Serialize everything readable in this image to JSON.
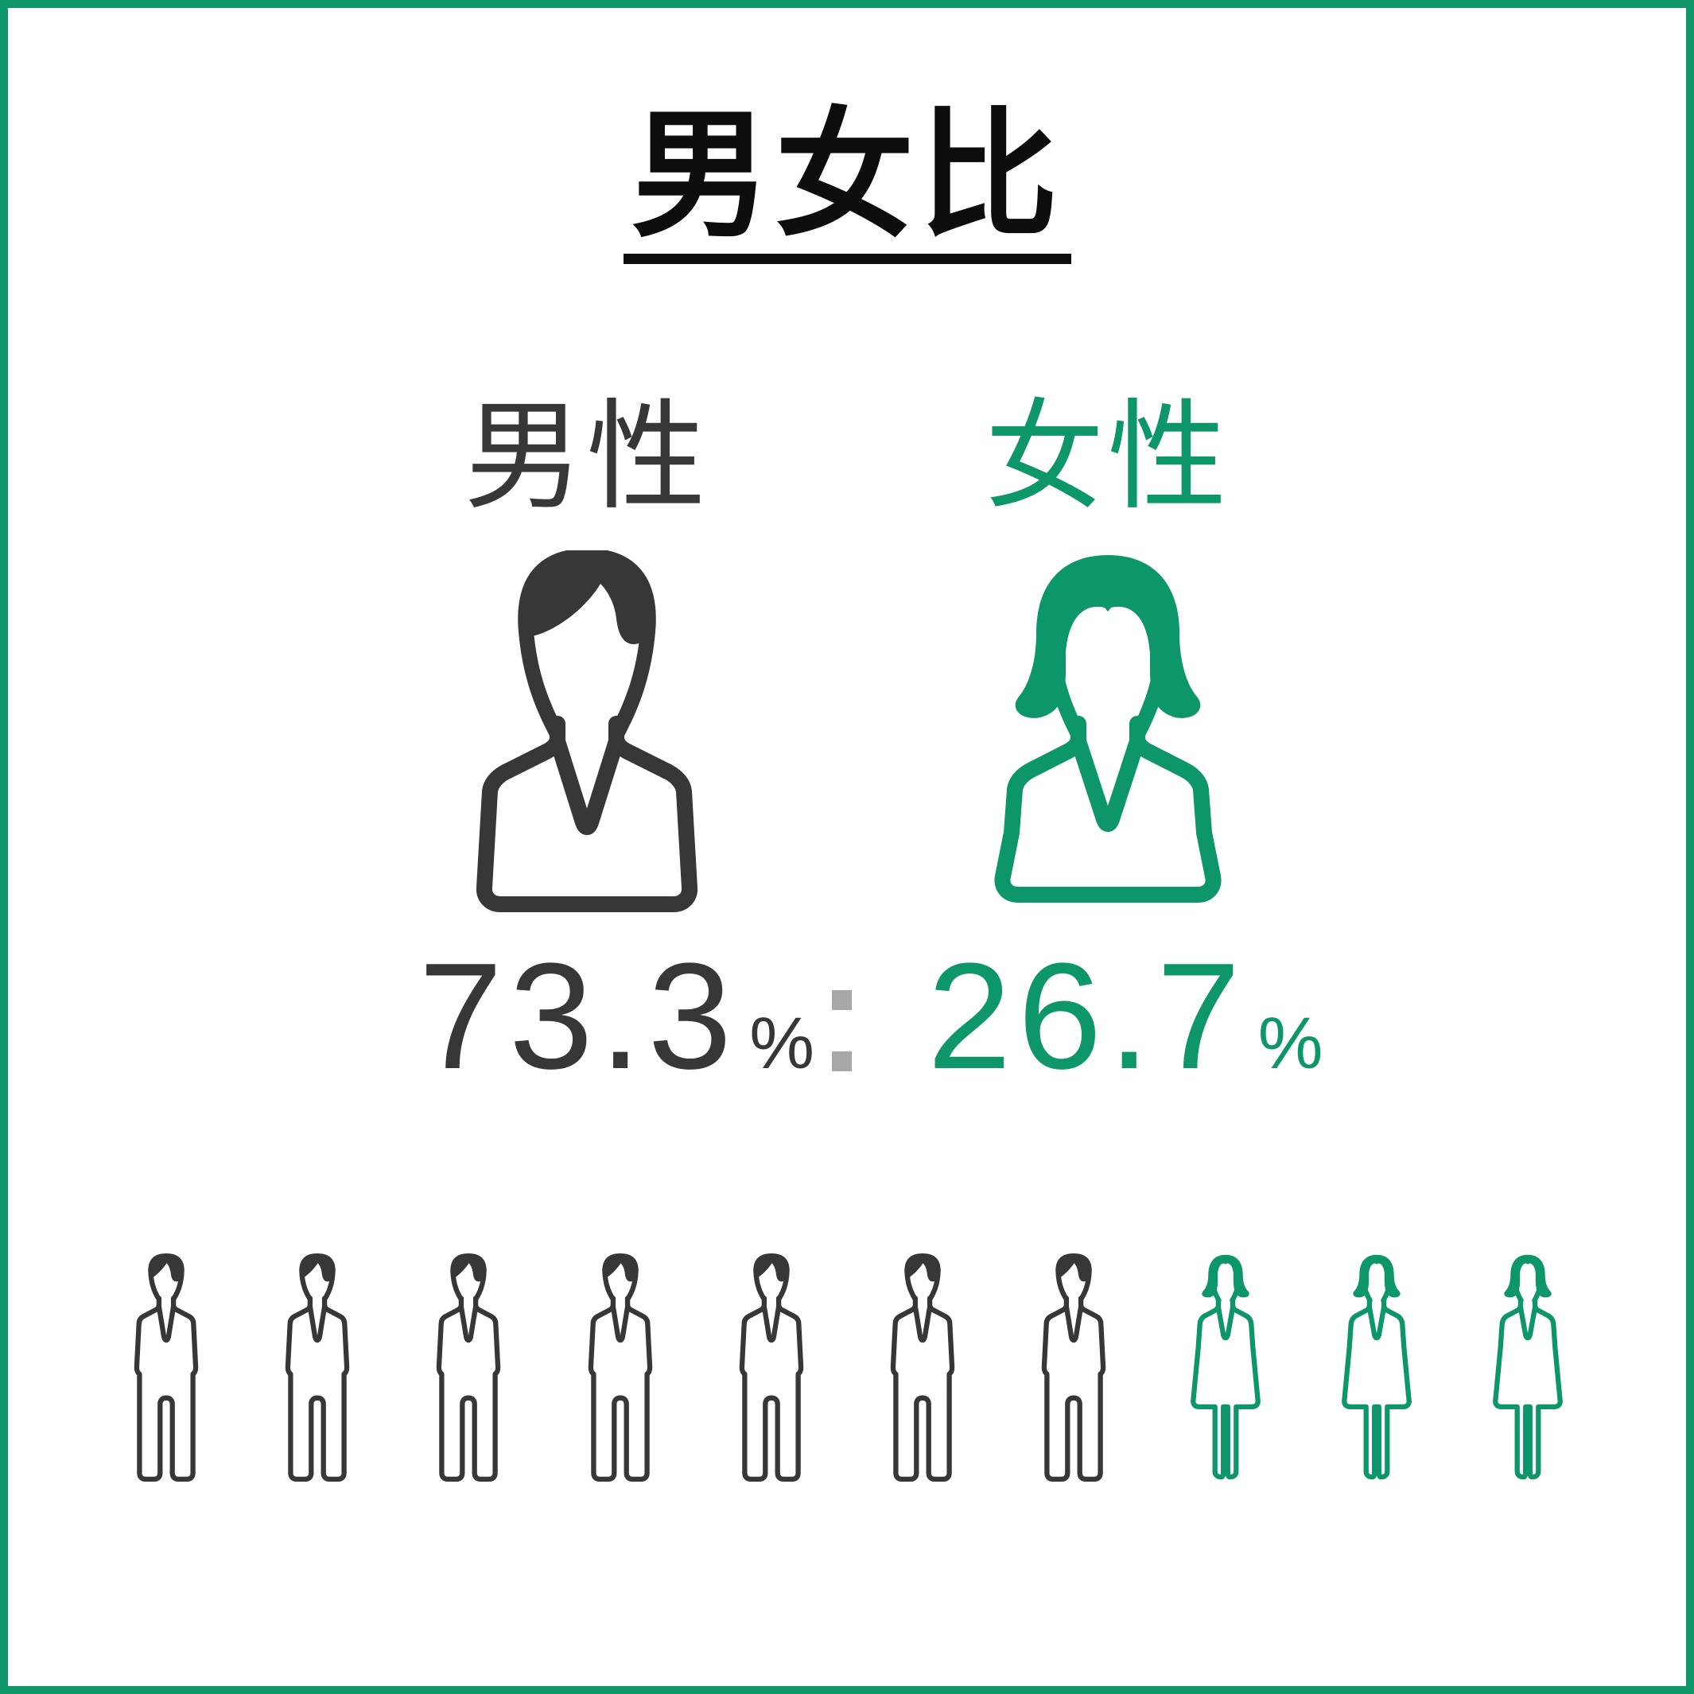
{
  "poster": {
    "title": "男女比",
    "background": "#ffffff",
    "border_color": "#0d9669"
  },
  "colors": {
    "male_dark": "#373737",
    "female_green": "#0d9669",
    "separator_gray": "#a8a8a8",
    "title_black": "#0d0d0d"
  },
  "male": {
    "label": "男性",
    "value": "73.3",
    "unit": "%"
  },
  "female": {
    "label": "女性",
    "value": "26.7",
    "unit": "%"
  },
  "separator": ":",
  "icons": {
    "male_bust": "male-bust-icon",
    "female_bust": "female-bust-icon",
    "male_figure": "male-figure-icon",
    "female_figure": "female-figure-icon"
  },
  "chart_data": {
    "type": "pictogram",
    "title": "男女比",
    "categories": [
      "男性",
      "女性"
    ],
    "values": [
      73.3,
      26.7
    ],
    "unit": "%",
    "series": [
      {
        "name": "男性",
        "value": 73.3,
        "icon_count": 7,
        "color": "#373737"
      },
      {
        "name": "女性",
        "value": 26.7,
        "icon_count": 3,
        "color": "#0d9669"
      }
    ],
    "total_icons": 10,
    "legend_position": "none"
  }
}
